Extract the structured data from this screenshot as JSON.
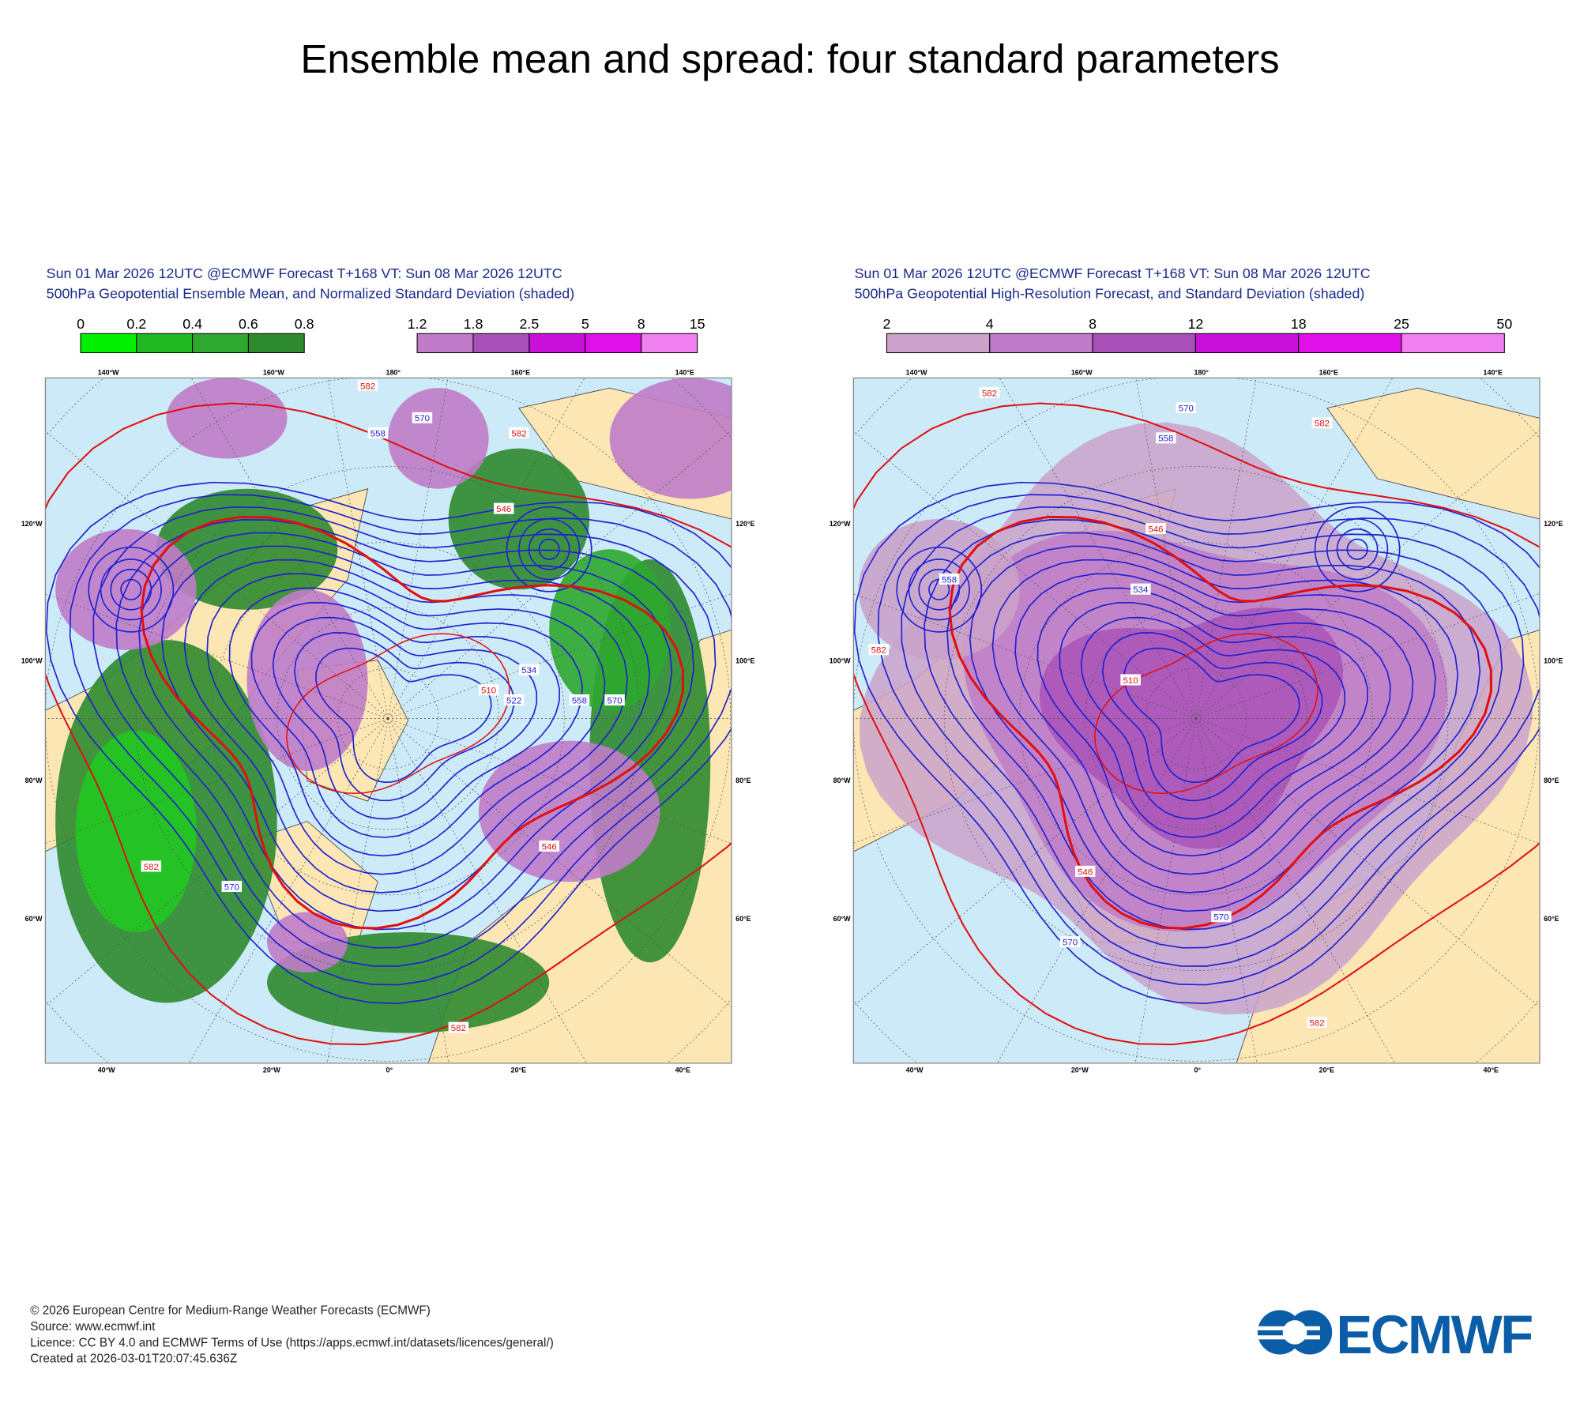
{
  "title": "Ensemble mean and spread: four standard parameters",
  "panels": [
    {
      "header": [
        "Sun 01 Mar 2026 12UTC @ECMWF Forecast T+168 VT: Sun 08 Mar 2026 12UTC",
        "500hPa Geopotential Ensemble Mean, and Normalized Standard Deviation (shaded)"
      ],
      "colorbars": [
        {
          "ticks": [
            0,
            0.2,
            0.4,
            0.6,
            0.8
          ],
          "colors": [
            "#00f000",
            "#22b822",
            "#2ea82e",
            "#2e8a2e"
          ]
        },
        {
          "ticks": [
            1.2,
            1.8,
            2.5,
            5,
            8,
            15
          ],
          "colors": [
            "#c07cc8",
            "#a850b8",
            "#c810d8",
            "#e010e8",
            "#f080f0"
          ]
        }
      ],
      "lon_labels": {
        "top": [
          "140°W",
          "160°W",
          "180°",
          "160°E",
          "140°E"
        ],
        "left": [
          "120°W",
          "100°W",
          "80°W",
          "60°W"
        ],
        "right": [
          "120°E",
          "100°E",
          "80°E",
          "60°E"
        ],
        "bottom": [
          "40°W",
          "20°W",
          "0°",
          "20°E",
          "40°E"
        ]
      },
      "contour_labels": [
        "582",
        "570",
        "558",
        "582",
        "546",
        "534",
        "522",
        "510",
        "558",
        "570",
        "546",
        "582",
        "570",
        "582"
      ]
    },
    {
      "header": [
        "Sun 01 Mar 2026 12UTC @ECMWF Forecast T+168 VT: Sun 08 Mar 2026 12UTC",
        "500hPa Geopotential High-Resolution Forecast, and Standard Deviation (shaded)"
      ],
      "colorbars": [
        {
          "ticks": [
            2,
            4,
            8,
            12,
            18,
            25,
            50
          ],
          "colors": [
            "#caa2ca",
            "#c07cc8",
            "#a850b8",
            "#c810d8",
            "#e010e8",
            "#f080f0"
          ]
        }
      ],
      "lon_labels": {
        "top": [
          "140°W",
          "160°W",
          "180°",
          "160°E",
          "140°E"
        ],
        "left": [
          "120°W",
          "100°W",
          "80°W",
          "60°W"
        ],
        "right": [
          "120°E",
          "100°E",
          "80°E",
          "60°E"
        ],
        "bottom": [
          "40°W",
          "20°W",
          "0°",
          "20°E",
          "40°E"
        ]
      },
      "contour_labels": [
        "582",
        "570",
        "558",
        "582",
        "546",
        "534",
        "510",
        "546",
        "582",
        "570",
        "558",
        "570",
        "582"
      ]
    }
  ],
  "footer": [
    "© 2026 European Centre for Medium-Range Weather Forecasts (ECMWF)",
    "Source: www.ecmwf.int",
    "Licence: CC BY 4.0 and ECMWF Terms of Use (https://apps.ecmwf.int/datasets/licences/general/)",
    "Created at 2026-03-01T20:07:45.636Z"
  ],
  "logo": "ECMWF"
}
